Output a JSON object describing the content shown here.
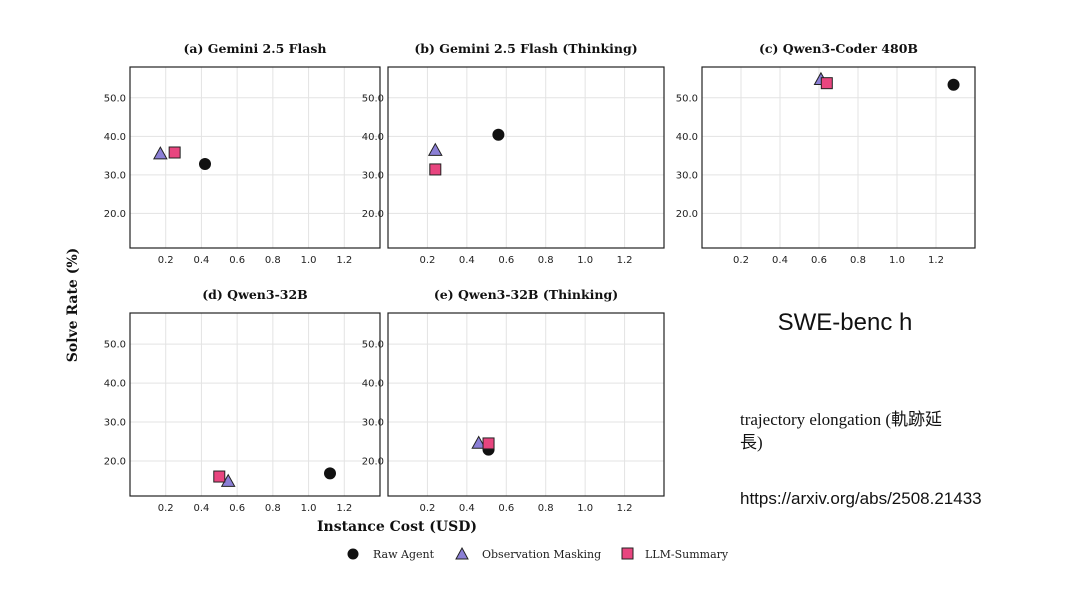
{
  "chart_data": {
    "type": "scatter",
    "xlabel": "Instance Cost (USD)",
    "ylabel": "Solve Rate (%)",
    "xlim": [
      0.0,
      1.4
    ],
    "ylim": [
      11,
      58
    ],
    "xticks": [
      "0.2",
      "0.4",
      "0.6",
      "0.8",
      "1.0",
      "1.2"
    ],
    "yticks": [
      "20.0",
      "30.0",
      "40.0",
      "50.0"
    ],
    "legend": [
      {
        "name": "Raw Agent",
        "marker": "circle",
        "color": "#111111"
      },
      {
        "name": "Observation Masking",
        "marker": "triangle",
        "color": "#8b7fd6"
      },
      {
        "name": "LLM-Summary",
        "marker": "square",
        "color": "#e8457f"
      }
    ],
    "panels": [
      {
        "title": "(a) Gemini 2.5 Flash",
        "points": [
          {
            "series": "Raw Agent",
            "x": 0.42,
            "y": 32.8
          },
          {
            "series": "Observation Masking",
            "x": 0.17,
            "y": 35.5
          },
          {
            "series": "LLM-Summary",
            "x": 0.25,
            "y": 35.8
          }
        ]
      },
      {
        "title": "(b) Gemini 2.5 Flash (Thinking)",
        "points": [
          {
            "series": "Raw Agent",
            "x": 0.56,
            "y": 40.4
          },
          {
            "series": "Observation Masking",
            "x": 0.24,
            "y": 36.4
          },
          {
            "series": "LLM-Summary",
            "x": 0.24,
            "y": 31.4
          }
        ]
      },
      {
        "title": "(c) Qwen3-Coder 480B",
        "points": [
          {
            "series": "Raw Agent",
            "x": 1.29,
            "y": 53.4
          },
          {
            "series": "Observation Masking",
            "x": 0.61,
            "y": 54.8
          },
          {
            "series": "LLM-Summary",
            "x": 0.64,
            "y": 53.8
          }
        ]
      },
      {
        "title": "(d) Qwen3-32B",
        "points": [
          {
            "series": "Raw Agent",
            "x": 1.12,
            "y": 16.8
          },
          {
            "series": "Observation Masking",
            "x": 0.55,
            "y": 14.8
          },
          {
            "series": "LLM-Summary",
            "x": 0.5,
            "y": 16.0
          }
        ]
      },
      {
        "title": "(e) Qwen3-32B (Thinking)",
        "points": [
          {
            "series": "Raw Agent",
            "x": 0.51,
            "y": 22.9
          },
          {
            "series": "Observation Masking",
            "x": 0.46,
            "y": 24.6
          },
          {
            "series": "LLM-Summary",
            "x": 0.51,
            "y": 24.5
          }
        ]
      }
    ]
  },
  "side": {
    "title": "SWE-benc h",
    "note": "trajectory elongation (軌跡延長)",
    "url": "https://arxiv.org/abs/2508.21433"
  }
}
